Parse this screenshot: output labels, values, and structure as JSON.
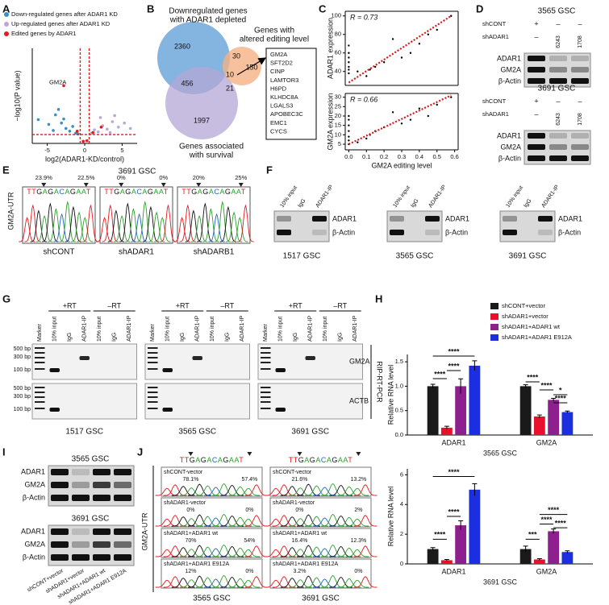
{
  "panel_labels": [
    "A",
    "B",
    "C",
    "D",
    "E",
    "F",
    "G",
    "H",
    "I",
    "J"
  ],
  "chart_data": [
    {
      "type": "scatter",
      "xlabel": "log2(ADAR1-KD/control)",
      "ylabel": "−log10(P value)",
      "xlim": [
        -7,
        7
      ],
      "xticks": [
        -5,
        0,
        5
      ],
      "ylim": [
        0,
        14
      ],
      "cutoffs_x": [
        -0.6,
        0.6
      ],
      "cutoff_y": 1.3,
      "cutoff_color": "#e41a1c",
      "annotations": [
        "GM2A"
      ],
      "series": [
        {
          "name": "Down-regulated genes after ADAR1 KD",
          "color": "#3a8fc8",
          "x": [
            -6.2,
            -4.8,
            -3.9,
            -3.1,
            -2.5,
            -2.0,
            -1.6,
            -1.2,
            -0.9,
            -3.5,
            -4.2,
            -2.8
          ],
          "values": [
            3.5,
            2.8,
            4.2,
            3.0,
            2.2,
            1.8,
            2.5,
            1.5,
            1.4,
            5.0,
            1.9,
            3.6
          ]
        },
        {
          "name": "Up-regulated genes after ADAR1 KD",
          "color": "#b9a7d8",
          "x": [
            0.9,
            1.3,
            1.8,
            2.4,
            3.0,
            3.7,
            4.5,
            5.3,
            6.1,
            2.1,
            3.4,
            4.0
          ],
          "values": [
            1.5,
            2.0,
            1.7,
            2.6,
            2.1,
            3.2,
            2.4,
            3.0,
            2.2,
            3.8,
            1.6,
            4.1
          ]
        },
        {
          "name": "Edited genes by ADAR1",
          "color": "#e41a1c",
          "x": [
            -2.8,
            -1.0,
            1.1,
            2.2,
            -0.2,
            0.3
          ],
          "values": [
            8.5,
            1.8,
            1.6,
            2.4,
            0.3,
            0.4
          ]
        }
      ]
    },
    {
      "type": "scatter",
      "ylabel": "ADAR1 expression",
      "r_label": "R = 0.73",
      "xlim": [
        -0.02,
        0.62
      ],
      "ylim": [
        25,
        105
      ],
      "yticks": [
        40,
        60,
        80,
        100
      ],
      "color": "#000000",
      "x": [
        0,
        0,
        0,
        0,
        0,
        0,
        0,
        0.05,
        0.1,
        0.12,
        0.15,
        0.2,
        0.25,
        0.3,
        0.35,
        0.4,
        0.45,
        0.5,
        0.58
      ],
      "values": [
        38,
        42,
        45,
        50,
        55,
        60,
        68,
        40,
        35,
        42,
        45,
        50,
        75,
        55,
        60,
        70,
        80,
        85,
        100
      ],
      "fit_line": {
        "x": [
          0,
          0.58
        ],
        "values": [
          28,
          100
        ],
        "color": "#d7191c"
      }
    },
    {
      "type": "scatter",
      "ylabel": "GM2A expression",
      "xlabel": "GM2A editing level",
      "r_label": "R = 0.66",
      "xlim": [
        -0.02,
        0.62
      ],
      "xticks": [
        {
          "value": 0,
          "label": "0.0"
        },
        0.1,
        0.2,
        0.3,
        0.4,
        0.5,
        0.6
      ],
      "ylim": [
        2,
        32
      ],
      "yticks": [
        5,
        10,
        15,
        20,
        25,
        30
      ],
      "color": "#000000",
      "x": [
        0,
        0,
        0,
        0,
        0,
        0,
        0,
        0.05,
        0.1,
        0.12,
        0.15,
        0.2,
        0.25,
        0.3,
        0.35,
        0.4,
        0.45,
        0.5,
        0.58
      ],
      "values": [
        5,
        7,
        9,
        12,
        15,
        18,
        20,
        6,
        8,
        10,
        12,
        14,
        22,
        16,
        18,
        24,
        20,
        26,
        30
      ],
      "fit_line": {
        "x": [
          0,
          0.58
        ],
        "values": [
          5,
          31
        ],
        "color": "#d7191c"
      }
    },
    {
      "type": "bar",
      "ylabel": "Relative RNA level",
      "xlabel": "3565 GSC",
      "categories": [
        "ADAR1",
        "GM2A"
      ],
      "ylim": [
        0,
        1.65
      ],
      "yticks": [
        {
          "value": 0,
          "label": "0.0"
        },
        0.5,
        {
          "value": 1,
          "label": "1.0"
        },
        1.5
      ],
      "series": [
        {
          "name": "shCONT+vector",
          "color": "#1a1a1a",
          "values": [
            1.0,
            1.0
          ],
          "errors": [
            0.04,
            0.03
          ]
        },
        {
          "name": "shADAR1+vector",
          "color": "#e8112d",
          "values": [
            0.15,
            0.38
          ],
          "errors": [
            0.03,
            0.03
          ]
        },
        {
          "name": "shADAR1+ADAR1 wt",
          "color": "#8e1f8e",
          "values": [
            1.0,
            0.72
          ],
          "errors": [
            0.15,
            0.03
          ]
        },
        {
          "name": "shADAR1+ADAR1 E912A",
          "color": "#1b2fe0",
          "values": [
            1.42,
            0.47
          ],
          "errors": [
            0.1,
            0.02
          ]
        }
      ],
      "annotations": [
        {
          "text": "****",
          "color": "#e8112d"
        },
        {
          "text": "****",
          "color": "#8e1f8e"
        },
        {
          "text": "****",
          "color": "#1b2fe0"
        },
        {
          "text": "****",
          "color": "#e8112d"
        },
        {
          "text": "****",
          "color": "#8e1f8e"
        },
        {
          "text": "*",
          "color": "#1b2fe0"
        },
        {
          "text": "****",
          "color": "#1a1a1a"
        }
      ]
    },
    {
      "type": "bar",
      "ylabel": "Relative RNA level",
      "xlabel": "3691 GSC",
      "categories": [
        "ADAR1",
        "GM2A"
      ],
      "ylim": [
        0,
        6.4
      ],
      "yticks": [
        0,
        2,
        4,
        6
      ],
      "series": [
        {
          "color": "#1a1a1a",
          "values": [
            1.0,
            1.0
          ],
          "errors": [
            0.1,
            0.2
          ]
        },
        {
          "color": "#e8112d",
          "values": [
            0.25,
            0.3
          ],
          "errors": [
            0.05,
            0.05
          ]
        },
        {
          "color": "#8e1f8e",
          "values": [
            2.6,
            2.2
          ],
          "errors": [
            0.3,
            0.15
          ]
        },
        {
          "color": "#1b2fe0",
          "values": [
            5.0,
            0.8
          ],
          "errors": [
            0.4,
            0.08
          ]
        }
      ],
      "annotations": [
        {
          "text": "****",
          "color": "#e8112d"
        },
        {
          "text": "****",
          "color": "#8e1f8e"
        },
        {
          "text": "****",
          "color": "#1b2fe0"
        },
        {
          "text": "***",
          "color": "#e8112d"
        },
        {
          "text": "****",
          "color": "#8e1f8e"
        },
        {
          "text": "****",
          "color": "#1b2fe0"
        },
        {
          "text": "****",
          "color": "#1a1a1a"
        }
      ]
    }
  ],
  "venn": {
    "title": [
      "Downregulated genes",
      "with ADAR1 depleted"
    ],
    "edit_title": [
      "Genes with",
      "altered editing level"
    ],
    "survival_title": [
      "Genes associated",
      "with survival"
    ],
    "counts": [
      "2360",
      "30",
      "150",
      "456",
      "10",
      "21",
      "1997"
    ],
    "genes": [
      "GM2A",
      "SFT2D2",
      "CINP",
      "LAMTOR3",
      "H6PD",
      "KLHDC8A",
      "LGALS3",
      "APOBEC3C",
      "EMC1",
      "CYCS"
    ]
  },
  "blot_d": {
    "rows": [
      "shCONT",
      "shADAR1"
    ],
    "marks": [
      [
        "+",
        "–",
        "–"
      ],
      [
        "–",
        "6243",
        "1708"
      ]
    ],
    "proteins": [
      "ADAR1",
      "GM2A",
      "β-Actin"
    ],
    "cells": [
      "3565 GSC",
      "3691 GSC"
    ]
  },
  "sanger_e": {
    "cell": "3691 GSC",
    "ylabel": "GM2A-UTR",
    "sequence": "TTGAGACAGAAT",
    "panels": [
      {
        "name": "shCONT",
        "pct": [
          "23.9%",
          "22.5%"
        ]
      },
      {
        "name": "shADAR1",
        "pct": [
          "0%",
          "0%"
        ]
      },
      {
        "name": "shADARB1",
        "pct": [
          "20%",
          "25%"
        ]
      }
    ]
  },
  "rip_f": {
    "lanes": [
      "10% input",
      "IgG",
      "ADAR1-IP"
    ],
    "proteins": [
      "ADAR1",
      "β-Actin"
    ],
    "cells": [
      "1517 GSC",
      "3565 GSC",
      "3691 GSC"
    ]
  },
  "rip_g": {
    "conditions": [
      "+RT",
      "–RT"
    ],
    "lanes": [
      "Marker",
      "10% input",
      "IgG",
      "ADAR1-IP",
      "10% input",
      "IgG",
      "ADAR1-IP"
    ],
    "ladder": [
      "500 bp",
      "300 bp",
      "100 bp"
    ],
    "genes": [
      "GM2A",
      "ACTB"
    ],
    "method": "RIP-RT-PCR",
    "cells": [
      "1517 GSC",
      "3565 GSC",
      "3691 GSC"
    ]
  },
  "blot_i": {
    "cells": [
      "3565 GSC",
      "3691 GSC"
    ],
    "proteins": [
      "ADAR1",
      "GM2A",
      "β-Actin"
    ],
    "lanes": [
      "shCONT+vector",
      "shADAR1+vector",
      "shADAR1+ADAR1 wt",
      "shADAR1+ADAR1 E912A"
    ]
  },
  "sanger_j": {
    "ylabel": "GM2A-UTR",
    "sequence": "TTGAGACAGAAT",
    "columns": [
      {
        "cell": "3565 GSC",
        "rows": [
          {
            "name": "shCONT-vector",
            "pct": [
              "78.1%",
              "57.4%"
            ]
          },
          {
            "name": "shADAR1-vector",
            "pct": [
              "0%",
              "0%"
            ]
          },
          {
            "name": "shADAR1+ADAR1 wt",
            "pct": [
              "70%",
              "54%"
            ]
          },
          {
            "name": "shADAR1+ADAR1 E912A",
            "pct": [
              "12%",
              "0%"
            ]
          }
        ]
      },
      {
        "cell": "3691 GSC",
        "rows": [
          {
            "name": "shCONT-vector",
            "pct": [
              "21.6%",
              "13.2%"
            ]
          },
          {
            "name": "shADAR1-vector",
            "pct": [
              "0%",
              "2%"
            ]
          },
          {
            "name": "shADAR1+ADAR1 wt",
            "pct": [
              "16.4%",
              "12.3%"
            ]
          },
          {
            "name": "shADAR1+ADAR1 E912A",
            "pct": [
              "3.2%",
              "0%"
            ]
          }
        ]
      }
    ]
  }
}
